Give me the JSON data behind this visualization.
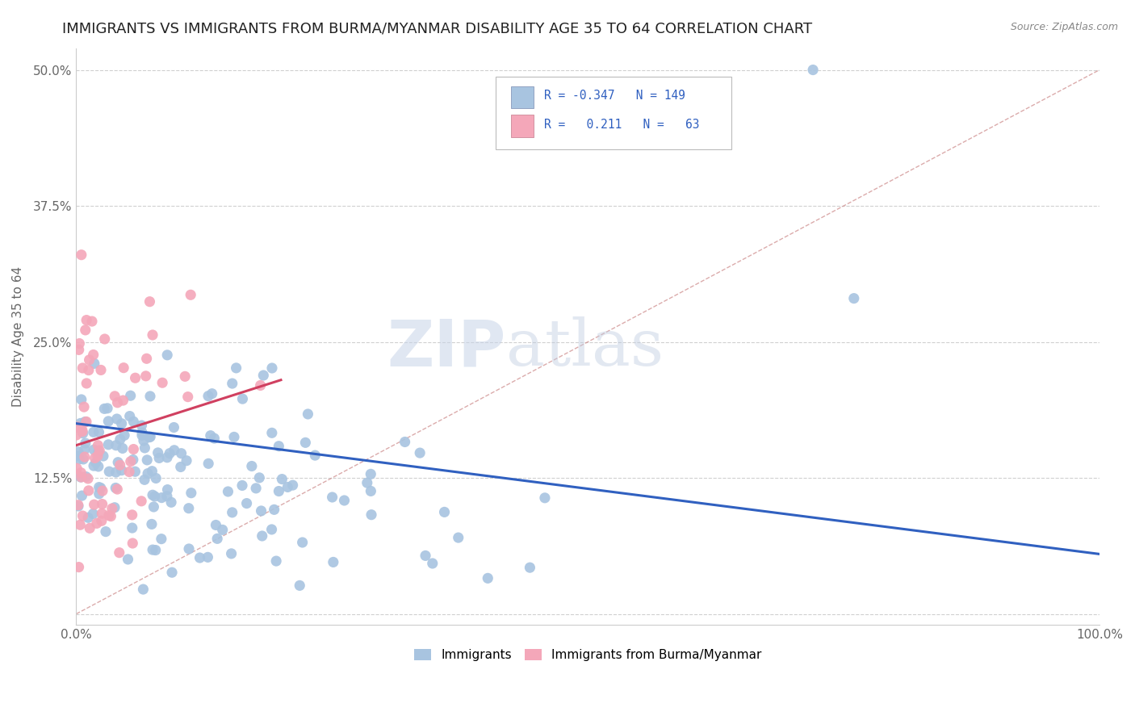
{
  "title": "IMMIGRANTS VS IMMIGRANTS FROM BURMA/MYANMAR DISABILITY AGE 35 TO 64 CORRELATION CHART",
  "source": "Source: ZipAtlas.com",
  "ylabel": "Disability Age 35 to 64",
  "xlim": [
    0.0,
    1.0
  ],
  "ylim": [
    -0.01,
    0.52
  ],
  "yticks": [
    0.0,
    0.125,
    0.25,
    0.375,
    0.5
  ],
  "ytick_labels": [
    "",
    "12.5%",
    "25.0%",
    "37.5%",
    "50.0%"
  ],
  "xticks": [
    0.0,
    1.0
  ],
  "xtick_labels": [
    "0.0%",
    "100.0%"
  ],
  "blue_color": "#a8c4e0",
  "pink_color": "#f4a7b9",
  "blue_line_color": "#3060c0",
  "pink_line_color": "#d04060",
  "dash_line_color": "#d08090",
  "watermark_zip": "ZIP",
  "watermark_atlas": "atlas",
  "background_color": "#ffffff",
  "grid_color": "#d0d0d0",
  "title_fontsize": 13,
  "label_fontsize": 11,
  "tick_fontsize": 11,
  "legend_text_color": "#3060c0",
  "legend_label_color": "#333333"
}
